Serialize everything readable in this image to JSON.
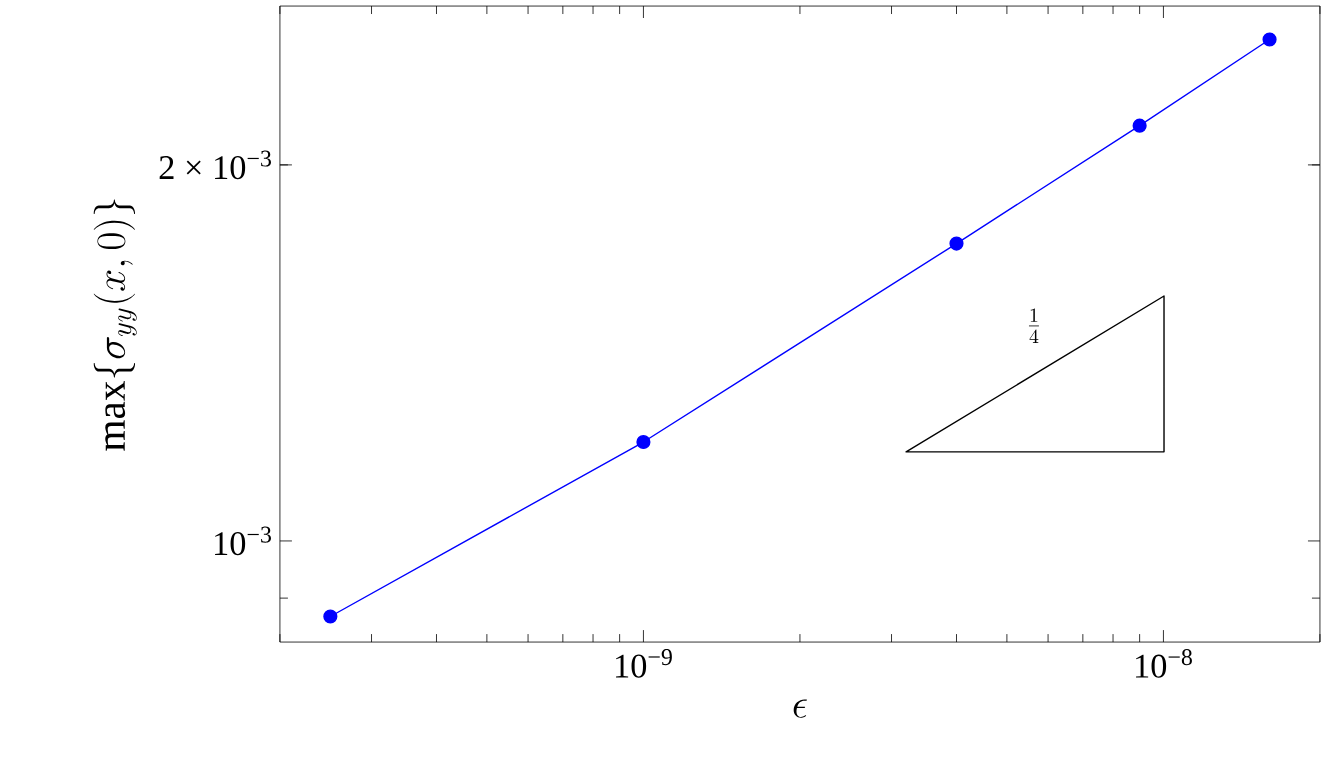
{
  "chart_data": {
    "type": "line",
    "xlabel": "\\epsilon",
    "ylabel": "\\max\\{\\sigma_{yy}(x,0)\\}",
    "log": "xy",
    "xlim": [
      2e-10,
      2e-08
    ],
    "ylim": [
      0.00083,
      0.00268
    ],
    "xticks": [
      {
        "value": 1e-09,
        "label": "10$^{−9}$"
      },
      {
        "value": 1e-08,
        "label": "10$^{−8}$"
      }
    ],
    "yticks": [
      {
        "value": 0.001,
        "label": "10$^{−3}$"
      },
      {
        "value": 0.002,
        "label": "2 × 10$^{−3}$"
      }
    ],
    "series": [
      {
        "color": "#0000ff",
        "marker": "circle",
        "x": [
          2.5e-10,
          1e-09,
          4e-09,
          9e-09,
          1.6e-08
        ],
        "values": [
          0.00087,
          0.0012,
          0.00173,
          0.00215,
          0.00252
        ]
      }
    ],
    "annotations": [
      "\\frac{1}{4}"
    ]
  }
}
